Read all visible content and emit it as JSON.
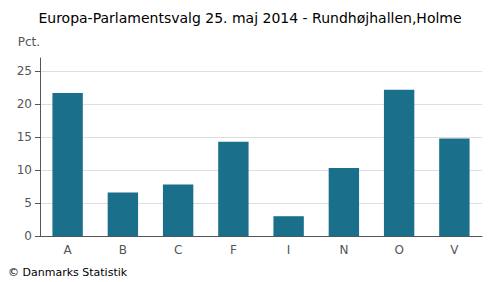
{
  "chart_data": {
    "type": "bar",
    "title": "Europa-Parlamentsvalg 25. maj 2014 - Rundhøjhallen,Holme",
    "ylabel": "Pct.",
    "annotations": [
      "© Danmarks Statistik"
    ],
    "categories": [
      "A",
      "B",
      "C",
      "F",
      "I",
      "N",
      "O",
      "V"
    ],
    "values": [
      21.7,
      6.6,
      7.8,
      14.3,
      3.0,
      10.3,
      22.2,
      14.8
    ],
    "color": "#1a6f8a",
    "ylim": [
      0,
      27
    ],
    "yticks": [
      0,
      5,
      10,
      15,
      20,
      25
    ],
    "grid": true
  }
}
